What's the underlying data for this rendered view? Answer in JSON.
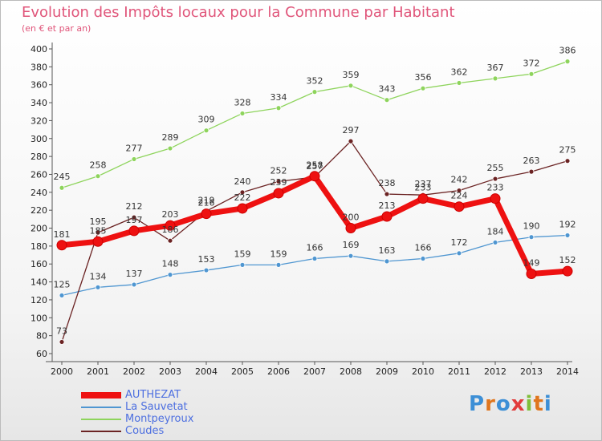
{
  "header": {
    "title": "Evolution des Impôts locaux pour la Commune par Habitant",
    "subtitle": "(en € et par an)"
  },
  "brand": "Proxiti",
  "chart_data": {
    "type": "line",
    "title": "Evolution des Impôts locaux pour la Commune par Habitant",
    "subtitle": "(en € et par an)",
    "xlabel": "",
    "ylabel": "",
    "ylim": [
      60,
      400
    ],
    "yticks": [
      60,
      80,
      100,
      120,
      140,
      160,
      180,
      200,
      220,
      240,
      260,
      280,
      300,
      320,
      340,
      360,
      380,
      400
    ],
    "x": [
      "2000",
      "2001",
      "2002",
      "2003",
      "2004",
      "2005",
      "2006",
      "2007",
      "2008",
      "2009",
      "2010",
      "2011",
      "2012",
      "2013",
      "2014"
    ],
    "grid": false,
    "legend_position": "bottom-left",
    "series": [
      {
        "name": "AUTHEZAT",
        "color": "#ee1111",
        "values": [
          181,
          185,
          197,
          203,
          216,
          222,
          239,
          258,
          200,
          213,
          233,
          224,
          233,
          149,
          152
        ]
      },
      {
        "name": "La Sauvetat",
        "color": "#4f96d1",
        "values": [
          125,
          134,
          137,
          148,
          153,
          159,
          159,
          166,
          169,
          163,
          166,
          172,
          184,
          190,
          192
        ]
      },
      {
        "name": "Montpeyroux",
        "color": "#8ed45c",
        "values": [
          245,
          258,
          277,
          289,
          309,
          328,
          334,
          352,
          359,
          343,
          356,
          362,
          367,
          372,
          386
        ]
      },
      {
        "name": "Coudes",
        "color": "#6b2323",
        "values": [
          73,
          195,
          212,
          186,
          219,
          240,
          252,
          257,
          297,
          238,
          237,
          242,
          255,
          263,
          275
        ]
      }
    ]
  }
}
